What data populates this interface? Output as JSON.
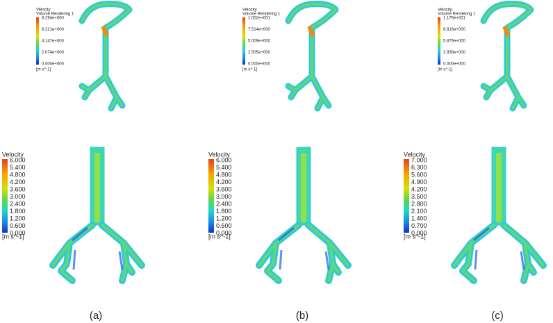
{
  "panels": [
    {
      "caption": "(a)",
      "top_legend": {
        "title": "Velocity",
        "subtitle": "Volume Rendering 1",
        "labels": [
          "8.294e+000",
          "6.221e+000",
          "4.147e+000",
          "2.074e+000",
          "0.000e+000"
        ],
        "unit": "[m s^-1]"
      },
      "bottom_legend": {
        "title": "Velocity",
        "labels": [
          "6.000",
          "5.400",
          "4.800",
          "4.200",
          "3.600",
          "3.000",
          "2.400",
          "1.800",
          "1.200",
          "0.600",
          "0.000"
        ],
        "unit": "[m s^-1]"
      }
    },
    {
      "caption": "(b)",
      "top_legend": {
        "title": "Velocity",
        "subtitle": "Volume Rendering 1",
        "labels": [
          "1.002e+001",
          "7.514e+000",
          "5.009e+000",
          "2.505e+000",
          "0.000e+000"
        ],
        "unit": "[m s^-1]"
      },
      "bottom_legend": {
        "title": "Velocity",
        "labels": [
          "6.000",
          "5.400",
          "4.800",
          "4.200",
          "3.600",
          "3.000",
          "2.400",
          "1.800",
          "1.200",
          "0.600",
          "0.000"
        ],
        "unit": "[m s^-1]"
      }
    },
    {
      "caption": "(c)",
      "top_legend": {
        "title": "Velocity",
        "subtitle": "Volume Rendering 1",
        "labels": [
          "1.176e+001",
          "8.816e+000",
          "5.876e+000",
          "2.938e+000",
          "0.000e+000"
        ],
        "unit": "[m s^-1]"
      },
      "bottom_legend": {
        "title": "Velocity",
        "labels": [
          "7.000",
          "6.300",
          "5.600",
          "4.900",
          "4.200",
          "3.500",
          "2.800",
          "2.100",
          "1.400",
          "0.700",
          "0.000"
        ],
        "unit": "[m s^-1]"
      }
    }
  ]
}
